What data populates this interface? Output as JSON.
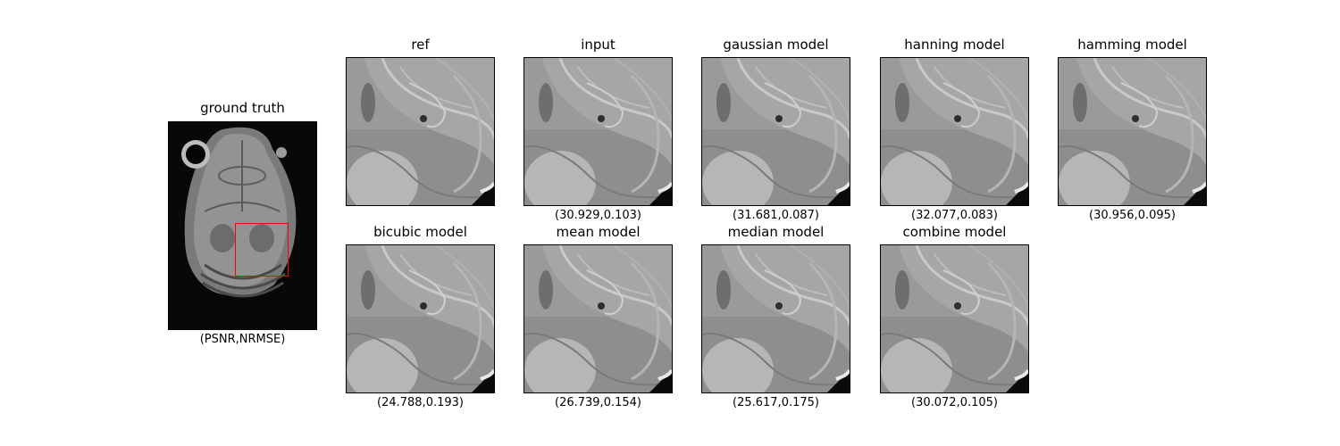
{
  "ground_truth": {
    "title": "ground truth",
    "caption": "(PSNR,NRMSE)"
  },
  "panels": [
    {
      "title": "ref",
      "caption": ""
    },
    {
      "title": "input",
      "caption": "(30.929,0.103)"
    },
    {
      "title": "gaussian model",
      "caption": "(31.681,0.087)"
    },
    {
      "title": "hanning model",
      "caption": "(32.077,0.083)"
    },
    {
      "title": "hamming model",
      "caption": "(30.956,0.095)"
    },
    {
      "title": "bicubic model",
      "caption": "(24.788,0.193)"
    },
    {
      "title": "mean model",
      "caption": "(26.739,0.154)"
    },
    {
      "title": "median model",
      "caption": "(25.617,0.175)"
    },
    {
      "title": "combine model",
      "caption": "(30.072,0.105)"
    }
  ],
  "colors": {
    "roi_box": "#ff0000",
    "background": "#0a0a0a",
    "tissue": "#8c8c8c"
  }
}
